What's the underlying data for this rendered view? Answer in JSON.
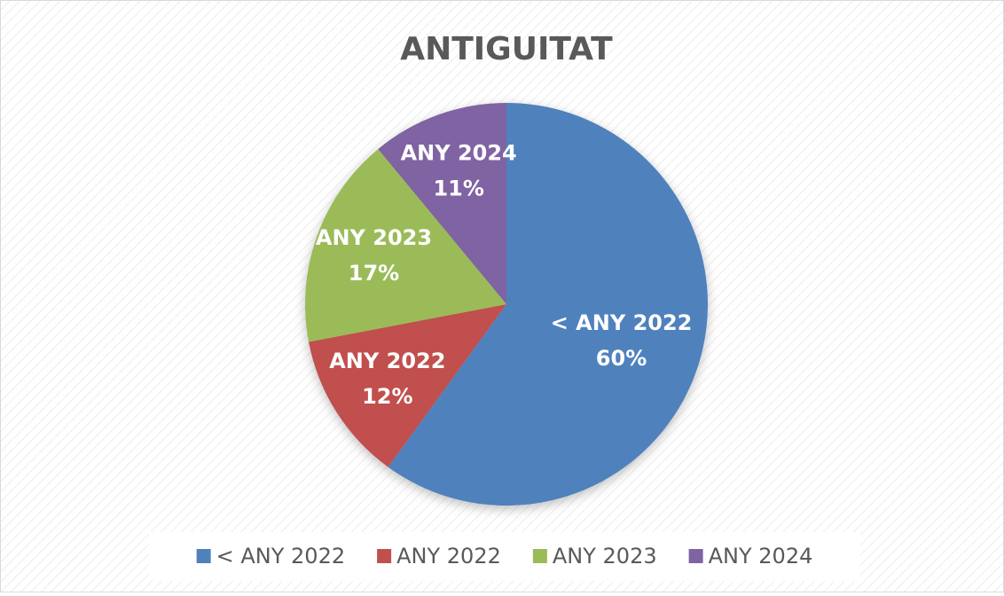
{
  "chart_data": {
    "type": "pie",
    "title": "ANTIGUITAT",
    "categories": [
      "< ANY 2022",
      "ANY 2022",
      "ANY 2023",
      "ANY 2024"
    ],
    "values": [
      60,
      12,
      17,
      11
    ],
    "value_labels": [
      "60%",
      "12%",
      "17%",
      "11%"
    ],
    "colors": [
      "#4f81bd",
      "#c0504d",
      "#9bbb59",
      "#8064a2"
    ],
    "legend": "bottom"
  }
}
